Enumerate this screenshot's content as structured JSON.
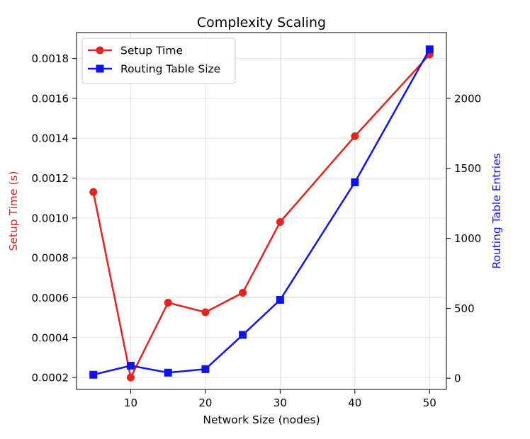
{
  "chart_data": {
    "type": "line",
    "title": "Complexity Scaling",
    "xlabel": "Network Size (nodes)",
    "ylabel_left": "Setup Time (s)",
    "ylabel_right": "Routing Table Entries",
    "xlim": [
      2.75,
      52.25
    ],
    "ylim_left": [
      0.00014,
      0.00193
    ],
    "ylim_right": [
      -80,
      2470
    ],
    "x_ticks": [
      10,
      20,
      30,
      40,
      50
    ],
    "y_left_ticks": [
      0.0002,
      0.0004,
      0.0006,
      0.0008,
      0.001,
      0.0012,
      0.0014,
      0.0016,
      0.0018
    ],
    "y_left_tick_labels": [
      "0.0002",
      "0.0004",
      "0.0006",
      "0.0008",
      "0.0010",
      "0.0012",
      "0.0014",
      "0.0016",
      "0.0018"
    ],
    "y_right_ticks": [
      0,
      500,
      1000,
      1500,
      2000
    ],
    "grid": true,
    "legend_position": "top-left",
    "x": [
      5,
      10,
      15,
      20,
      25,
      30,
      40,
      50
    ],
    "series": [
      {
        "name": "Setup Time",
        "axis": "left",
        "color": "#e8221c",
        "marker": "circle",
        "values": [
          0.00113,
          0.0002,
          0.000575,
          0.000527,
          0.000625,
          0.00098,
          0.00141,
          0.00182
        ]
      },
      {
        "name": "Routing Table Size",
        "axis": "right",
        "color": "#0f12f5",
        "marker": "square",
        "values": [
          25,
          90,
          40,
          65,
          310,
          560,
          1400,
          2350
        ]
      }
    ]
  }
}
